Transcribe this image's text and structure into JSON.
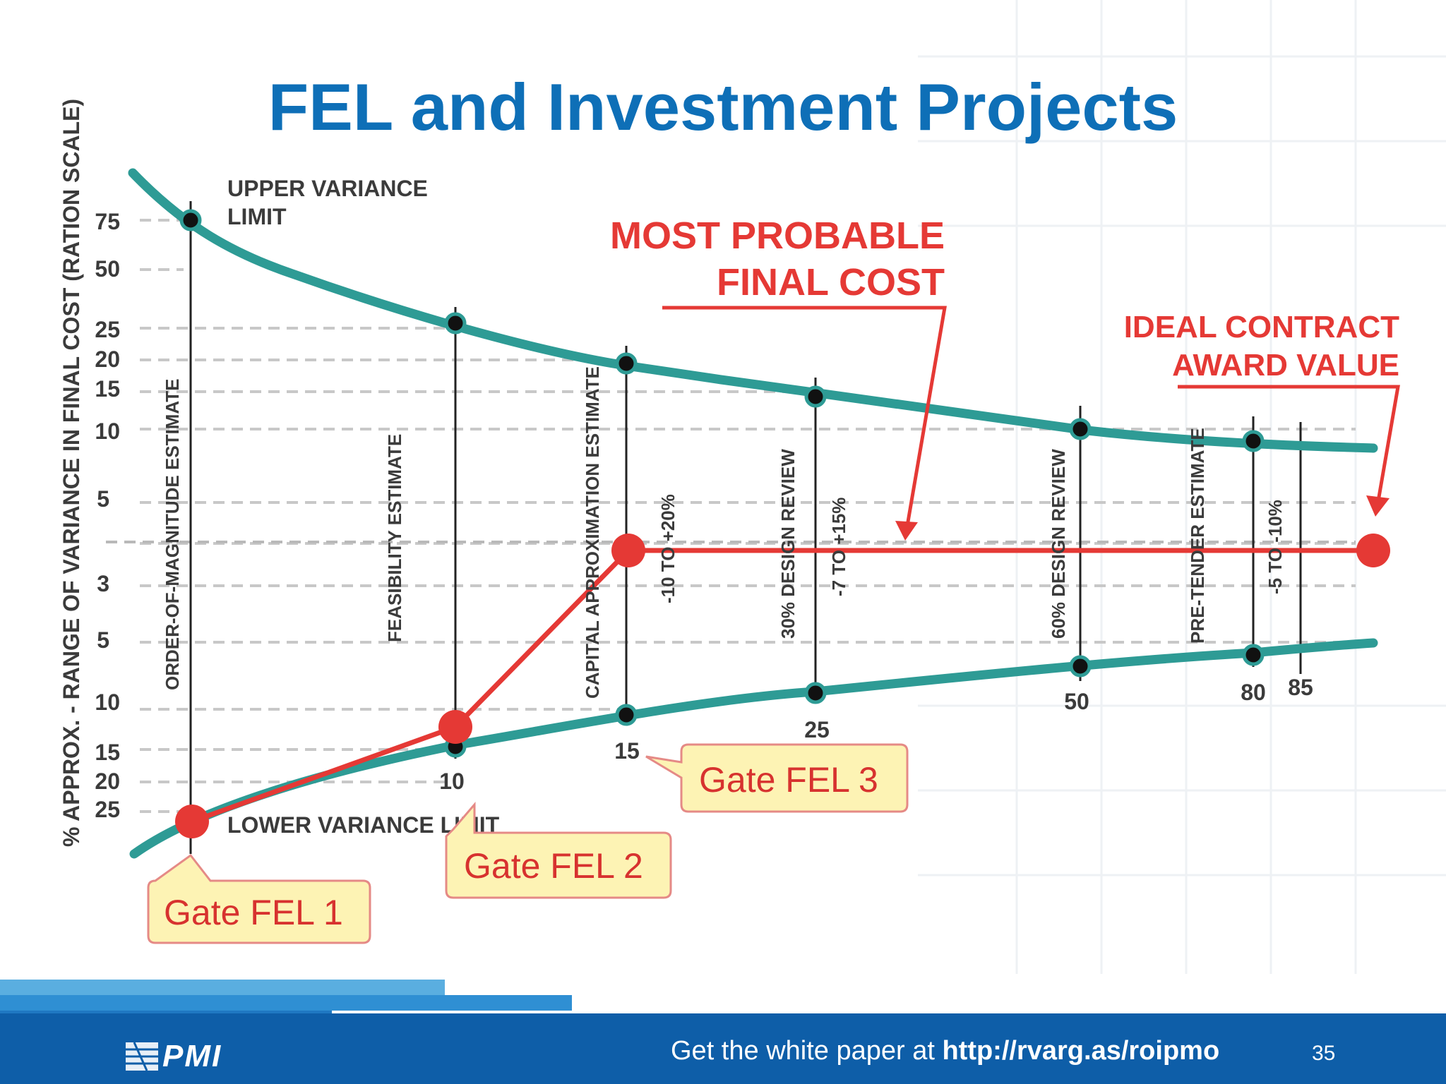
{
  "title": "FEL and Investment Projects",
  "y_axis_label": "% APPROX. - RANGE OF VARIANCE IN FINAL COST (RATION SCALE)",
  "y_ticks_upper": [
    "75",
    "50",
    "25",
    "20",
    "15",
    "10",
    "5",
    "3"
  ],
  "y_ticks_lower": [
    "5",
    "10",
    "15",
    "20",
    "25"
  ],
  "upper_limit_label": [
    "UPPER VARIANCE",
    "LIMIT"
  ],
  "lower_limit_label": "LOWER VARIANCE LIMIT",
  "most_probable_label": [
    "MOST PROBABLE",
    "FINAL COST"
  ],
  "ideal_contract_label": [
    "IDEAL CONTRACT",
    "AWARD VALUE"
  ],
  "estimates": [
    {
      "label": "ORDER-OF-MAGNITUDE ESTIMATE",
      "position": ""
    },
    {
      "label": "FEASIBILITY ESTIMATE",
      "position": "10"
    },
    {
      "label": "CAPITAL APPROXIMATION ESTIMATE",
      "position": "15",
      "range": "-10 TO +20%"
    },
    {
      "label": "30% DESIGN REVIEW",
      "position": "25",
      "range": "-7 TO +15%"
    },
    {
      "label": "60% DESIGN REVIEW",
      "position": "50"
    },
    {
      "label": "PRE-TENDER ESTIMATE",
      "position": "80",
      "range": "-5 TO -10%"
    },
    {
      "label": "",
      "position": "85"
    }
  ],
  "gates": [
    "Gate FEL 1",
    "Gate FEL 2",
    "Gate FEL 3"
  ],
  "footer": {
    "text_prefix": "Get the white paper at ",
    "link": "http://rvarg.as/roipmo",
    "page_number": "35",
    "logo_text": "PMI"
  },
  "colors": {
    "title": "#0e6fb7",
    "variance_curve": "#2e9b95",
    "red": "#e53935",
    "callout_fill": "#fdf3b4",
    "footer": "#0e5ea8"
  }
}
